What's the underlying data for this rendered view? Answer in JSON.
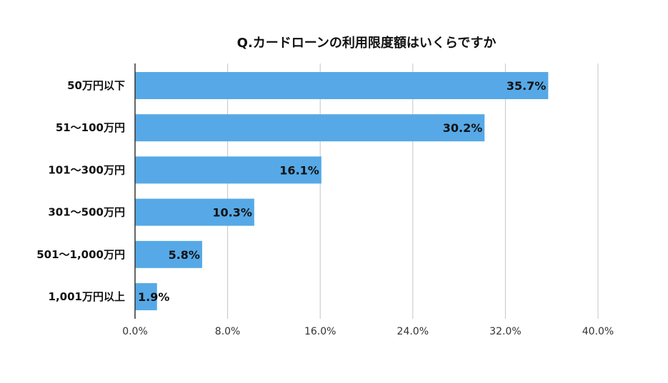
{
  "chart_data": {
    "type": "bar",
    "orientation": "horizontal",
    "title": "Q.カードローンの利用限度額はいくらですか",
    "categories": [
      "50万円以下",
      "51〜100万円",
      "101〜300万円",
      "301〜500万円",
      "501〜1,000万円",
      "1,001万円以上"
    ],
    "values": [
      35.7,
      30.2,
      16.1,
      10.3,
      5.8,
      1.9
    ],
    "data_labels": [
      "35.7%",
      "30.2%",
      "16.1%",
      "10.3%",
      "5.8%",
      "1.9%"
    ],
    "x_ticks": [
      "0.0%",
      "8.0%",
      "16.0%",
      "24.0%",
      "32.0%",
      "40.0%"
    ],
    "xlim": [
      0,
      40
    ],
    "xlabel": "",
    "ylabel": "",
    "grid": true,
    "bar_color": "#56a9e6",
    "legend": "none"
  }
}
